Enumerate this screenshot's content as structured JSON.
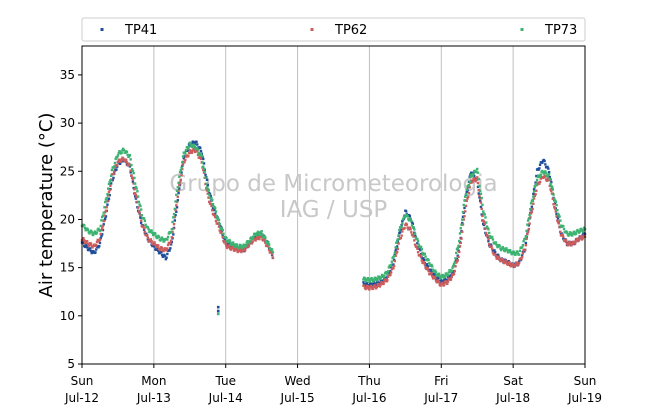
{
  "chart_data": {
    "type": "scatter",
    "title": "",
    "xlabel": "",
    "ylabel": "Air temperature (°C)",
    "ylim": [
      5,
      38
    ],
    "xlim": [
      "2015-07-12 00:00",
      "2015-07-19 00:00"
    ],
    "yticks": [
      5,
      10,
      15,
      20,
      25,
      30,
      35
    ],
    "xtick_labels": [
      [
        "Sun",
        "Jul-12"
      ],
      [
        "Mon",
        "Jul-13"
      ],
      [
        "Tue",
        "Jul-14"
      ],
      [
        "Wed",
        "Jul-15"
      ],
      [
        "Thu",
        "Jul-16"
      ],
      [
        "Fri",
        "Jul-17"
      ],
      [
        "Sat",
        "Jul-18"
      ],
      [
        "Sun",
        "Jul-19"
      ]
    ],
    "grid": "vertical at day boundaries",
    "legend_position": "top, above plot",
    "watermark": [
      "Grupo de Micrometeorologia",
      "IAG / USP"
    ],
    "x_hours": [
      0,
      2,
      4,
      6,
      8,
      10,
      12,
      14,
      16,
      18,
      20,
      22,
      24,
      26,
      28,
      30,
      32,
      34,
      36,
      38,
      40,
      42,
      44,
      46,
      48,
      50,
      52,
      54,
      56,
      58,
      60,
      62,
      64,
      66,
      68,
      70,
      72,
      74,
      76,
      78,
      80,
      82,
      84,
      86,
      88,
      90,
      92,
      94,
      96,
      98,
      100,
      102,
      104,
      106,
      108,
      110,
      112,
      114,
      116,
      118,
      120,
      122,
      124,
      126,
      128,
      130,
      132,
      134,
      136,
      138,
      140,
      142,
      144,
      146,
      148,
      150,
      152,
      154,
      156,
      158,
      160,
      162,
      164,
      166,
      168
    ],
    "series": [
      {
        "name": "TP41",
        "color": "#1f4e9c",
        "values": [
          17.6,
          17.0,
          16.5,
          17.5,
          20.5,
          24.0,
          25.8,
          26.2,
          25.5,
          22.0,
          19.5,
          18.0,
          17.2,
          16.6,
          16.0,
          17.5,
          22.0,
          26.5,
          27.8,
          28.0,
          27.0,
          23.5,
          21.0,
          19.5,
          17.5,
          17.3,
          17.0,
          16.8,
          17.5,
          18.3,
          18.5,
          17.5,
          16.0,
          null,
          null,
          null,
          null,
          null,
          null,
          null,
          null,
          null,
          null,
          null,
          null,
          null,
          null,
          13.3,
          13.2,
          13.3,
          13.5,
          14.0,
          15.5,
          18.5,
          20.8,
          20.0,
          17.5,
          15.8,
          14.8,
          14.0,
          13.5,
          13.8,
          14.5,
          17.0,
          22.0,
          25.0,
          24.0,
          19.5,
          17.5,
          16.5,
          15.8,
          15.6,
          15.2,
          15.5,
          17.0,
          21.0,
          25.0,
          26.2,
          25.0,
          21.5,
          18.5,
          17.5,
          17.5,
          18.0,
          18.5
        ],
        "outliers": [
          [
            45.5,
            10.9
          ],
          [
            45.5,
            10.5
          ]
        ]
      },
      {
        "name": "TP62",
        "color": "#cd5c5c",
        "values": [
          18.0,
          17.5,
          17.2,
          18.0,
          21.0,
          24.5,
          26.0,
          26.3,
          25.5,
          22.5,
          19.5,
          18.0,
          17.5,
          17.0,
          16.8,
          18.0,
          22.5,
          26.0,
          27.0,
          27.2,
          26.0,
          22.5,
          20.5,
          19.0,
          17.3,
          17.0,
          16.8,
          16.8,
          17.5,
          18.0,
          18.2,
          17.2,
          16.0,
          null,
          null,
          null,
          null,
          null,
          null,
          null,
          null,
          null,
          null,
          null,
          null,
          null,
          null,
          13.0,
          12.9,
          13.0,
          13.3,
          13.8,
          15.0,
          17.8,
          19.5,
          18.8,
          16.8,
          15.5,
          14.5,
          13.8,
          13.2,
          13.5,
          14.2,
          16.5,
          21.0,
          24.0,
          24.2,
          20.0,
          17.5,
          16.2,
          15.8,
          15.5,
          15.2,
          15.5,
          17.0,
          20.5,
          23.5,
          24.5,
          24.0,
          21.0,
          18.5,
          17.5,
          17.5,
          18.0,
          18.2
        ],
        "outliers": []
      },
      {
        "name": "TP73",
        "color": "#3cb371",
        "values": [
          19.5,
          18.8,
          18.5,
          19.0,
          22.0,
          25.0,
          26.8,
          27.2,
          26.5,
          23.5,
          20.5,
          19.0,
          18.5,
          18.0,
          17.8,
          19.0,
          23.5,
          26.8,
          27.8,
          27.5,
          26.5,
          23.0,
          21.5,
          19.5,
          18.0,
          17.5,
          17.2,
          17.2,
          17.8,
          18.5,
          18.6,
          17.6,
          16.4,
          null,
          null,
          null,
          null,
          null,
          null,
          null,
          null,
          null,
          null,
          null,
          null,
          null,
          null,
          13.8,
          13.7,
          13.8,
          14.0,
          14.5,
          16.0,
          18.8,
          20.5,
          19.8,
          17.8,
          16.5,
          15.5,
          14.5,
          14.0,
          14.3,
          15.0,
          17.8,
          22.5,
          24.5,
          25.2,
          21.0,
          18.5,
          17.5,
          17.0,
          16.8,
          16.5,
          16.5,
          18.0,
          21.5,
          24.2,
          25.0,
          24.5,
          22.0,
          19.5,
          18.5,
          18.5,
          18.8,
          19.0
        ],
        "outliers": [
          [
            45.5,
            10.2
          ]
        ]
      }
    ]
  }
}
